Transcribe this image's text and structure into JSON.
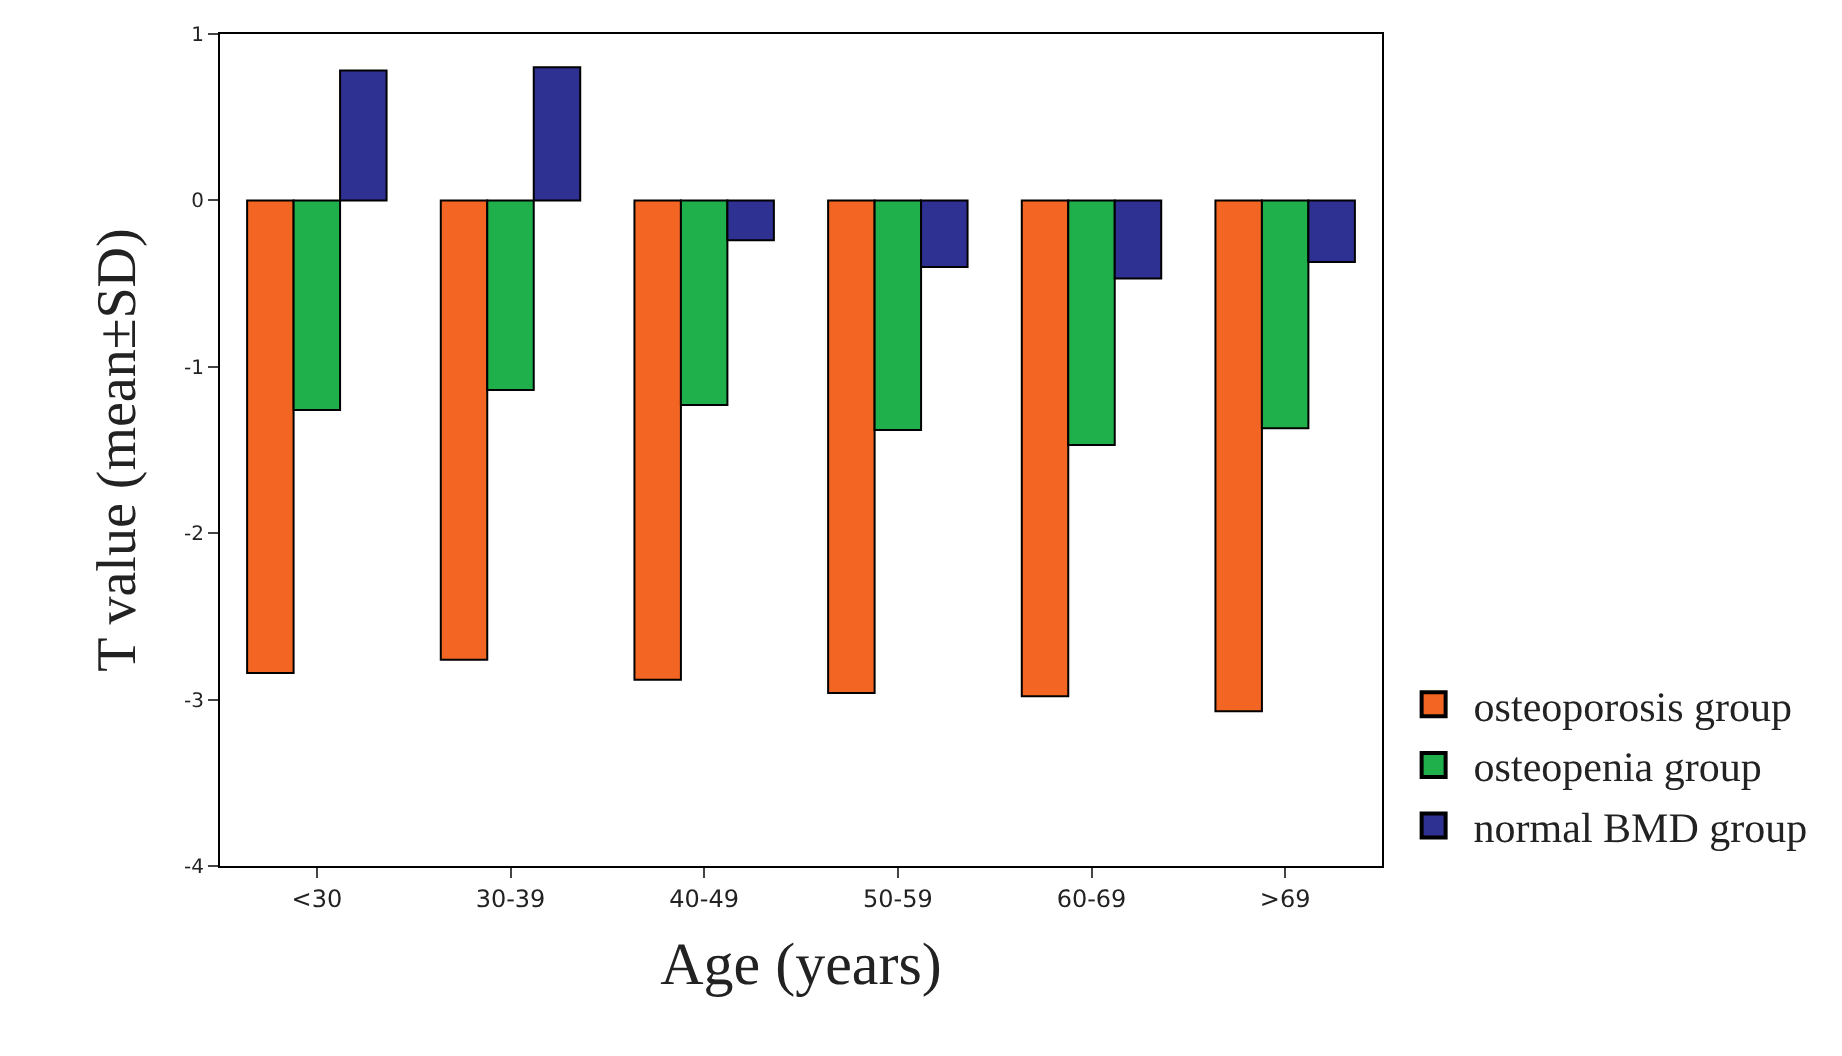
{
  "chart_data": {
    "type": "bar",
    "xlabel": "Age (years)",
    "ylabel": "T value (mean±SD)",
    "categories": [
      "<30",
      "30-39",
      "40-49",
      "50-59",
      "60-69",
      ">69"
    ],
    "series": [
      {
        "name": "osteoporosis group",
        "color": "#f26522",
        "values": [
          -2.84,
          -2.76,
          -2.88,
          -2.96,
          -2.98,
          -3.07
        ]
      },
      {
        "name": "osteopenia group",
        "color": "#1fb04b",
        "values": [
          -1.26,
          -1.14,
          -1.23,
          -1.38,
          -1.47,
          -1.37
        ]
      },
      {
        "name": "normal BMD group",
        "color": "#2e3192",
        "values": [
          0.78,
          0.8,
          -0.24,
          -0.4,
          -0.47,
          -0.37
        ]
      }
    ],
    "ylim": [
      -4,
      1
    ],
    "yticks": [
      -4,
      -3,
      -2,
      -1,
      0,
      1
    ],
    "legend": "bottom right"
  }
}
